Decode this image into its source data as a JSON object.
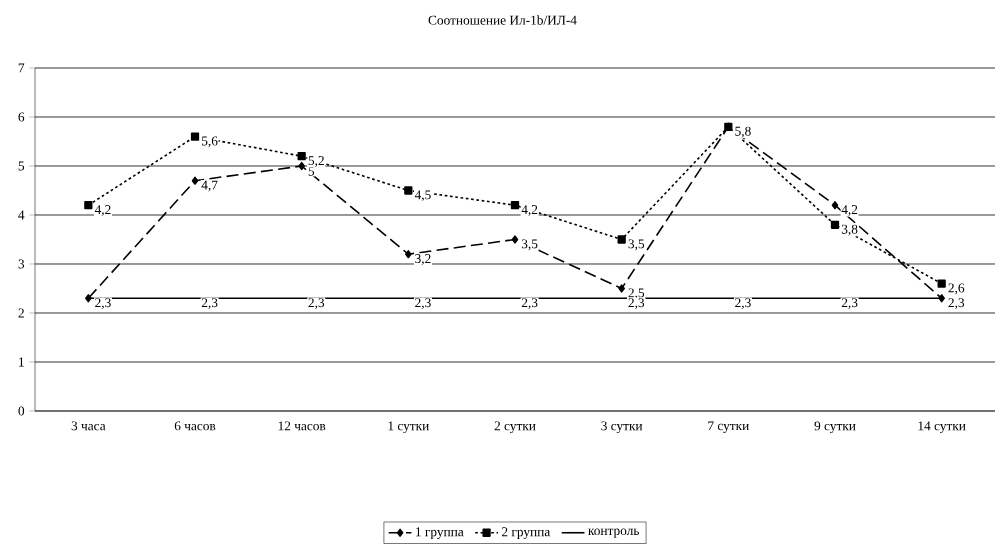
{
  "chart_data": {
    "type": "line",
    "title": "Соотношение Ил-1b/ИЛ-4",
    "categories": [
      "3 часа",
      "6 часов",
      "12 часов",
      "1 сутки",
      "2 сутки",
      "3 сутки",
      "7 сутки",
      "9 сутки",
      "14 сутки"
    ],
    "series": [
      {
        "name": "1 группа",
        "color": "#000000",
        "marker": "diamond",
        "line_style": "dashed",
        "values": [
          2.3,
          4.7,
          5,
          3.2,
          3.5,
          2.5,
          5.8,
          4.2,
          2.3
        ],
        "value_labels": [
          null,
          "4,7",
          "5",
          "3,2",
          "3,5",
          "2,5",
          "5,8",
          "4,2",
          "2,3"
        ]
      },
      {
        "name": "2 группа",
        "color": "#000000",
        "marker": "square",
        "line_style": "dotted",
        "values": [
          4.2,
          5.6,
          5.2,
          4.5,
          4.2,
          3.5,
          5.8,
          3.8,
          2.6
        ],
        "value_labels": [
          "4,2",
          "5,6",
          "5,2",
          "4,5",
          "4,2",
          "3,5",
          null,
          "3,8",
          "2,6"
        ]
      },
      {
        "name": "контроль",
        "color": "#000000",
        "marker": "none",
        "line_style": "solid",
        "values": [
          2.3,
          2.3,
          2.3,
          2.3,
          2.3,
          2.3,
          2.3,
          2.3,
          2.3
        ],
        "value_labels": [
          "2,3",
          "2,3",
          "2,3",
          "2,3",
          "2,3",
          "2,3",
          "2,3",
          "2,3",
          null
        ]
      }
    ],
    "ylim": [
      0,
      7
    ],
    "yticks": [
      0,
      1,
      2,
      3,
      4,
      5,
      6,
      7
    ],
    "grid": "y",
    "legend": "bottom"
  }
}
